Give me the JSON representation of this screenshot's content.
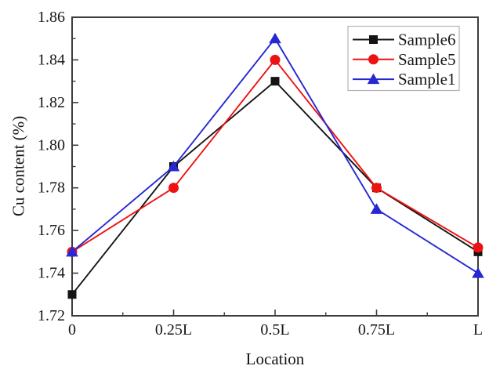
{
  "chart_data": {
    "type": "line",
    "title": "",
    "xlabel": "Location",
    "ylabel": "Cu content (%)",
    "categories": [
      "0",
      "0.25L",
      "0.5L",
      "0.75L",
      "L"
    ],
    "series": [
      {
        "name": "Sample6",
        "color": "#141414",
        "marker": "square",
        "values": [
          1.73,
          1.79,
          1.83,
          1.78,
          1.75
        ]
      },
      {
        "name": "Sample5",
        "color": "#ee1111",
        "marker": "circle",
        "values": [
          1.75,
          1.78,
          1.84,
          1.78,
          1.752
        ]
      },
      {
        "name": "Sample1",
        "color": "#2727d3",
        "marker": "triangle",
        "values": [
          1.75,
          1.79,
          1.85,
          1.77,
          1.74
        ]
      }
    ],
    "ylim": [
      1.72,
      1.86
    ],
    "y_tick_labels": [
      "1.72",
      "1.74",
      "1.76",
      "1.78",
      "1.80",
      "1.82",
      "1.84",
      "1.86"
    ],
    "y_minor_tick_step": 0.01,
    "x_minor_ticks_between_majors": 1,
    "grid": false,
    "legend_position": "top-right",
    "legend_entries": [
      "Sample6",
      "Sample5",
      "Sample1"
    ],
    "axis_color": "#3d3d3d",
    "text_color": "#161616",
    "legend_border_color": "#b3b3b3",
    "legend_background": "#ffffff",
    "plot_background": "#ffffff"
  }
}
